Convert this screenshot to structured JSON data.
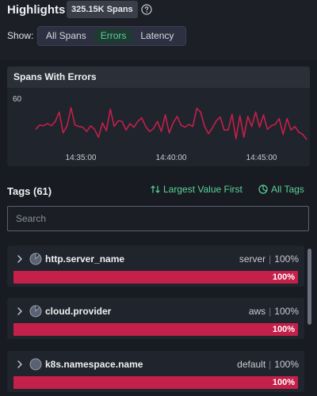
{
  "header": {
    "title": "Highlights",
    "count_badge": "325.15K Spans",
    "show_label": "Show:",
    "filters": [
      {
        "label": "All Spans",
        "active": false
      },
      {
        "label": "Errors",
        "active": true
      },
      {
        "label": "Latency",
        "active": false
      }
    ]
  },
  "chart": {
    "title": "Spans With Errors"
  },
  "chart_data": {
    "type": "line",
    "title": "Spans With Errors",
    "xlabel": "",
    "ylabel": "",
    "y_tick_labels": [
      "60"
    ],
    "x_tick_labels": [
      "14:35:00",
      "14:40:00",
      "14:45:00"
    ],
    "ylim": [
      0,
      78
    ],
    "grid": false,
    "color": "#c4204a",
    "series": [
      {
        "values": [
          26,
          32,
          31,
          34,
          31,
          37,
          50,
          21,
          31,
          56,
          32,
          30,
          29,
          23,
          31,
          26,
          15,
          35,
          24,
          54,
          30,
          38,
          37,
          25,
          34,
          29,
          37,
          42,
          30,
          23,
          27,
          37,
          23,
          46,
          21,
          35,
          44,
          32,
          29,
          33,
          30,
          55,
          50,
          30,
          20,
          28,
          38,
          43,
          25,
          25,
          47,
          13,
          45,
          15,
          44,
          30,
          50,
          29,
          46,
          26,
          31,
          33,
          41,
          19,
          41,
          25,
          30,
          22,
          19,
          12
        ]
      }
    ]
  },
  "tags": {
    "title": "Tags (61)",
    "sort_label": "Largest Value First",
    "all_tags_label": "All Tags",
    "search_placeholder": "Search",
    "items": [
      {
        "name": "http.server_name",
        "value": "server",
        "pct_label": "100%",
        "bar_label": "100%",
        "fill": 1.0,
        "pie_fraction": 0.85
      },
      {
        "name": "cloud.provider",
        "value": "aws",
        "pct_label": "100%",
        "bar_label": "100%",
        "fill": 1.0,
        "pie_fraction": 0.85
      },
      {
        "name": "k8s.namespace.name",
        "value": "default",
        "pct_label": "100%",
        "bar_label": "100%",
        "fill": 1.0,
        "pie_fraction": 1.0
      }
    ]
  },
  "icons": {
    "help": "help-circle-icon",
    "sort": "sort-arrows-icon",
    "all_tags": "pie-chart-icon",
    "chevron": "chevron-right-icon"
  },
  "colors": {
    "accent_green": "#5ad19a",
    "error_red": "#c4204a",
    "background": "#181b21"
  }
}
